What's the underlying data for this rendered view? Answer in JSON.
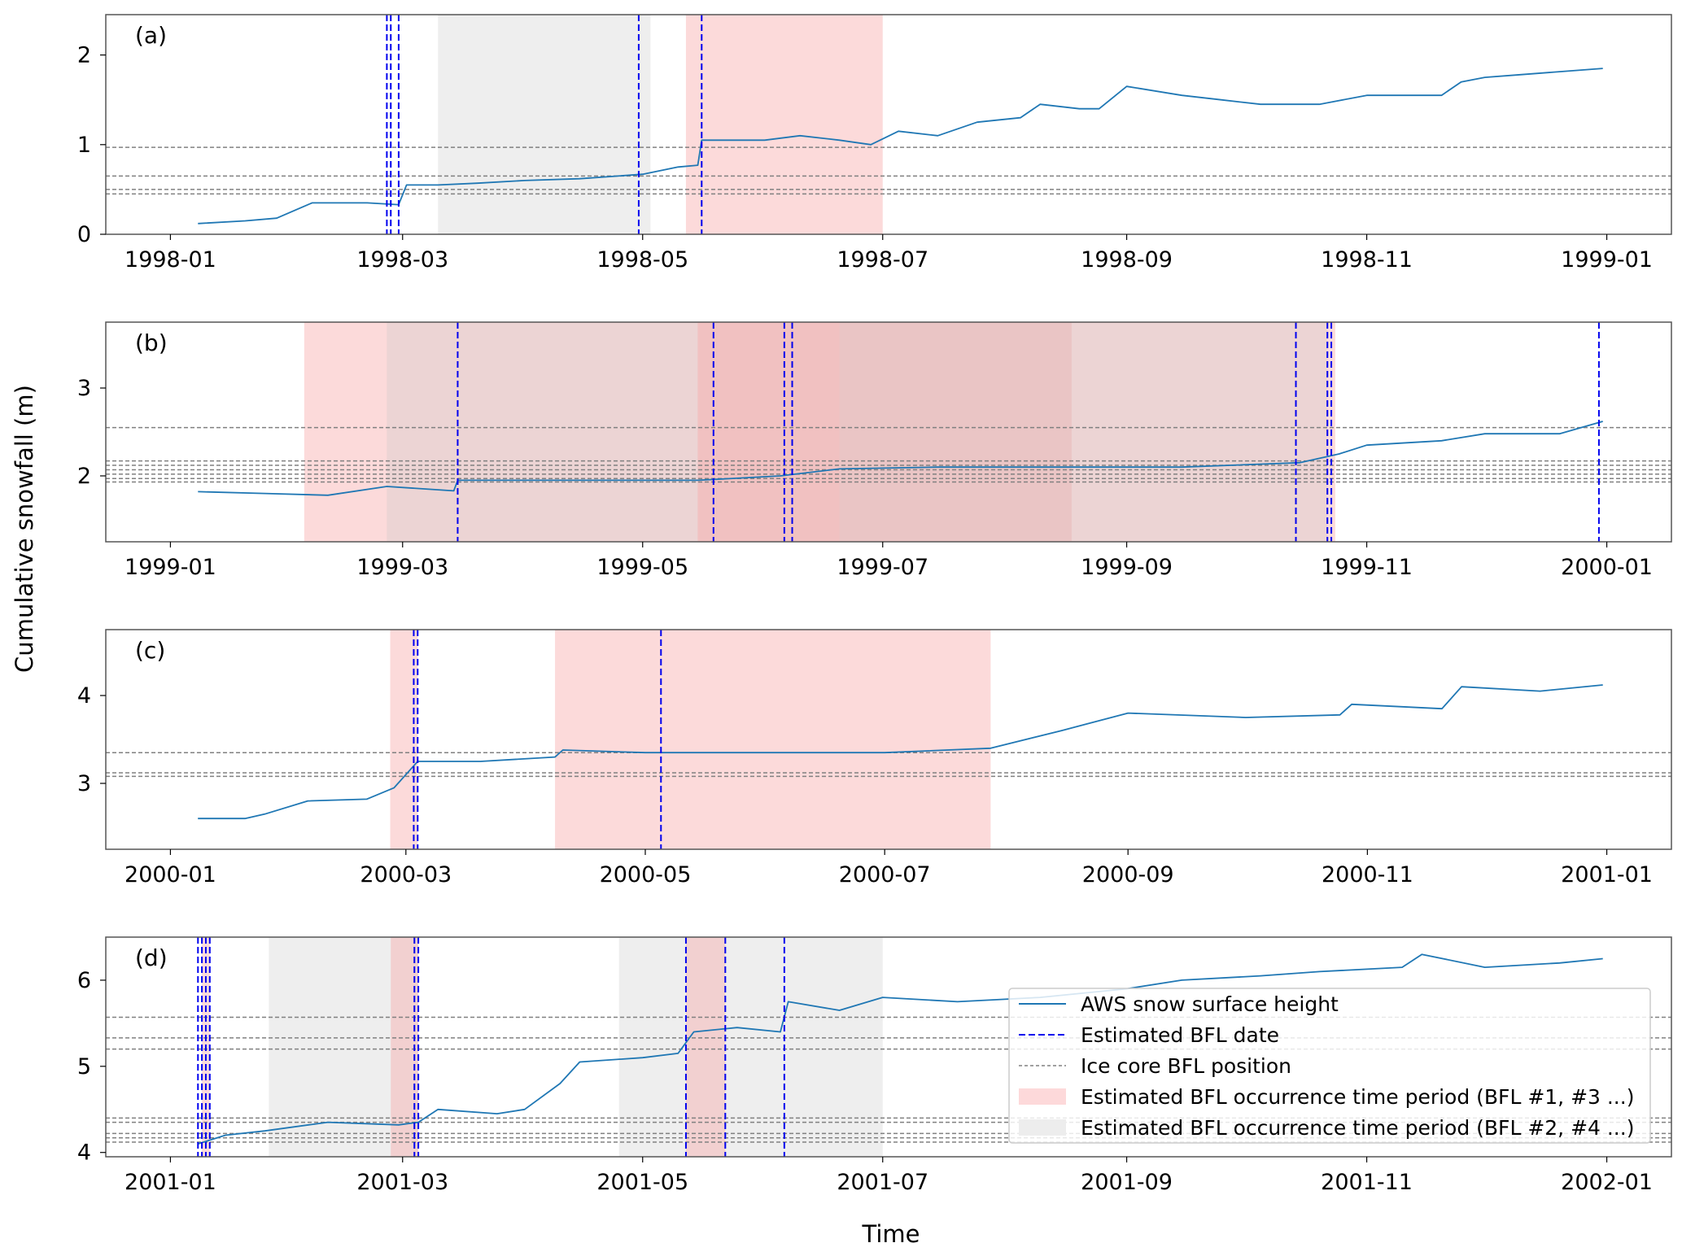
{
  "figure": {
    "ylabel": "Cumulative snowfall (m)",
    "xlabel": "Time"
  },
  "legend": {
    "placement": "lower-right of panel (d)",
    "entries": [
      {
        "label": "AWS snow surface height",
        "style": "line",
        "color": "#1f77b4"
      },
      {
        "label": "Estimated BFL date",
        "style": "dashed",
        "color": "#0000ee"
      },
      {
        "label": "Ice core BFL position",
        "style": "dotted",
        "color": "#808080"
      },
      {
        "label": "Estimated BFL occurrence time period (BFL #1, #3 ...)",
        "style": "patch",
        "color": "#fdd9da"
      },
      {
        "label": "Estimated BFL occurrence time period (BFL #2, #4 ...)",
        "style": "patch",
        "color": "#eeeeee"
      }
    ]
  },
  "colors": {
    "aws_line": "#1f77b4",
    "bfl_date": "#0000ee",
    "ice_core": "#808080",
    "period_odd": "#fdd9da",
    "period_even": "#ededed",
    "overlap": "#e8b0b0",
    "axes": "#000000"
  },
  "chart_data": [
    {
      "type": "line",
      "panel": "(a)",
      "xlim": [
        "1998-01-01",
        "1999-01-01"
      ],
      "ylim": [
        0,
        2.45
      ],
      "xticks": [
        "1998-01",
        "1998-03",
        "1998-05",
        "1998-07",
        "1998-09",
        "1998-11",
        "1999-01"
      ],
      "yticks": [
        "0",
        "1",
        "2"
      ],
      "series": [
        {
          "name": "AWS snow surface height",
          "points": [
            [
              "1998-01-08",
              0.12
            ],
            [
              "1998-01-20",
              0.15
            ],
            [
              "1998-01-28",
              0.18
            ],
            [
              "1998-02-06",
              0.35
            ],
            [
              "1998-02-20",
              0.35
            ],
            [
              "1998-02-28",
              0.33
            ],
            [
              "1998-03-02",
              0.55
            ],
            [
              "1998-03-10",
              0.55
            ],
            [
              "1998-03-20",
              0.57
            ],
            [
              "1998-04-01",
              0.6
            ],
            [
              "1998-04-15",
              0.62
            ],
            [
              "1998-05-01",
              0.67
            ],
            [
              "1998-05-10",
              0.75
            ],
            [
              "1998-05-15",
              0.77
            ],
            [
              "1998-05-16",
              1.05
            ],
            [
              "1998-06-01",
              1.05
            ],
            [
              "1998-06-10",
              1.1
            ],
            [
              "1998-06-20",
              1.05
            ],
            [
              "1998-06-28",
              1.0
            ],
            [
              "1998-07-05",
              1.15
            ],
            [
              "1998-07-15",
              1.1
            ],
            [
              "1998-07-25",
              1.25
            ],
            [
              "1998-08-05",
              1.3
            ],
            [
              "1998-08-10",
              1.45
            ],
            [
              "1998-08-20",
              1.4
            ],
            [
              "1998-08-25",
              1.4
            ],
            [
              "1998-09-01",
              1.65
            ],
            [
              "1998-09-15",
              1.55
            ],
            [
              "1998-09-25",
              1.5
            ],
            [
              "1998-10-05",
              1.45
            ],
            [
              "1998-10-20",
              1.45
            ],
            [
              "1998-11-01",
              1.55
            ],
            [
              "1998-11-20",
              1.55
            ],
            [
              "1998-11-25",
              1.7
            ],
            [
              "1998-12-01",
              1.75
            ],
            [
              "1998-12-10",
              1.78
            ],
            [
              "1998-12-31",
              1.85
            ]
          ]
        }
      ],
      "bfl_dates": [
        "1998-02-25",
        "1998-02-26",
        "1998-02-28",
        "1998-04-30",
        "1998-05-16"
      ],
      "ice_core_bfl_positions": [
        0.45,
        0.5,
        0.65,
        0.97
      ],
      "periods": [
        {
          "start": "1998-03-10",
          "end": "1998-05-03",
          "group": "even"
        },
        {
          "start": "1998-05-12",
          "end": "1998-07-01",
          "group": "odd"
        }
      ]
    },
    {
      "type": "line",
      "panel": "(b)",
      "xlim": [
        "1999-01-01",
        "2000-01-01"
      ],
      "ylim": [
        1.25,
        3.75
      ],
      "xticks": [
        "1999-01",
        "1999-03",
        "1999-05",
        "1999-07",
        "1999-09",
        "1999-11",
        "2000-01"
      ],
      "yticks": [
        "2",
        "3"
      ],
      "series": [
        {
          "name": "AWS snow surface height",
          "points": [
            [
              "1999-01-08",
              1.82
            ],
            [
              "1999-01-25",
              1.8
            ],
            [
              "1999-02-10",
              1.78
            ],
            [
              "1999-02-25",
              1.88
            ],
            [
              "1999-03-14",
              1.83
            ],
            [
              "1999-03-15",
              1.95
            ],
            [
              "1999-04-15",
              1.95
            ],
            [
              "1999-05-15",
              1.95
            ],
            [
              "1999-06-05",
              2.0
            ],
            [
              "1999-06-20",
              2.08
            ],
            [
              "1999-07-15",
              2.1
            ],
            [
              "1999-08-15",
              2.1
            ],
            [
              "1999-09-15",
              2.1
            ],
            [
              "1999-10-15",
              2.15
            ],
            [
              "1999-10-25",
              2.25
            ],
            [
              "1999-11-01",
              2.35
            ],
            [
              "1999-11-20",
              2.4
            ],
            [
              "1999-12-01",
              2.48
            ],
            [
              "1999-12-20",
              2.48
            ],
            [
              "1999-12-31",
              2.62
            ]
          ]
        }
      ],
      "bfl_dates": [
        "1999-03-15",
        "1999-05-19",
        "1999-06-06",
        "1999-06-08",
        "1999-10-14",
        "1999-10-22",
        "1999-10-23",
        "1999-12-30"
      ],
      "ice_core_bfl_positions": [
        1.93,
        1.97,
        2.02,
        2.07,
        2.12,
        2.17,
        2.55
      ],
      "periods": [
        {
          "start": "1999-02-04",
          "end": "1999-10-24",
          "group": "odd"
        },
        {
          "start": "1999-02-25",
          "end": "1999-06-20",
          "group": "even"
        },
        {
          "start": "1999-05-15",
          "end": "1999-08-18",
          "group": "odd"
        },
        {
          "start": "1999-06-20",
          "end": "1999-10-22",
          "group": "even"
        }
      ]
    },
    {
      "type": "line",
      "panel": "(c)",
      "xlim": [
        "2000-01-01",
        "2001-01-01"
      ],
      "ylim": [
        2.25,
        4.75
      ],
      "xticks": [
        "2000-01",
        "2000-03",
        "2000-05",
        "2000-07",
        "2000-09",
        "2000-11",
        "2001-01"
      ],
      "yticks": [
        "3",
        "4"
      ],
      "series": [
        {
          "name": "AWS snow surface height",
          "points": [
            [
              "2000-01-08",
              2.6
            ],
            [
              "2000-01-20",
              2.6
            ],
            [
              "2000-01-25",
              2.65
            ],
            [
              "2000-02-05",
              2.8
            ],
            [
              "2000-02-20",
              2.82
            ],
            [
              "2000-02-27",
              2.95
            ],
            [
              "2000-03-04",
              3.25
            ],
            [
              "2000-03-20",
              3.25
            ],
            [
              "2000-04-08",
              3.3
            ],
            [
              "2000-04-10",
              3.38
            ],
            [
              "2000-05-01",
              3.35
            ],
            [
              "2000-06-01",
              3.35
            ],
            [
              "2000-07-01",
              3.35
            ],
            [
              "2000-07-28",
              3.4
            ],
            [
              "2000-08-15",
              3.6
            ],
            [
              "2000-09-01",
              3.8
            ],
            [
              "2000-10-01",
              3.75
            ],
            [
              "2000-10-25",
              3.78
            ],
            [
              "2000-10-28",
              3.9
            ],
            [
              "2000-11-20",
              3.85
            ],
            [
              "2000-11-25",
              4.1
            ],
            [
              "2000-12-15",
              4.05
            ],
            [
              "2000-12-31",
              4.12
            ]
          ]
        }
      ],
      "bfl_dates": [
        "2000-03-03",
        "2000-03-04",
        "2000-05-05"
      ],
      "ice_core_bfl_positions": [
        3.08,
        3.12,
        3.35
      ],
      "periods": [
        {
          "start": "2000-02-26",
          "end": "2000-03-04",
          "group": "odd"
        },
        {
          "start": "2000-04-08",
          "end": "2000-07-28",
          "group": "odd"
        }
      ]
    },
    {
      "type": "line",
      "panel": "(d)",
      "xlim": [
        "2001-01-01",
        "2002-01-01"
      ],
      "ylim": [
        3.95,
        6.5
      ],
      "xticks": [
        "2001-01",
        "2001-03",
        "2001-05",
        "2001-07",
        "2001-09",
        "2001-11",
        "2002-01"
      ],
      "yticks": [
        "4",
        "5",
        "6"
      ],
      "series": [
        {
          "name": "AWS snow surface height",
          "points": [
            [
              "2001-01-08",
              4.1
            ],
            [
              "2001-01-15",
              4.2
            ],
            [
              "2001-01-25",
              4.25
            ],
            [
              "2001-02-10",
              4.35
            ],
            [
              "2001-02-28",
              4.32
            ],
            [
              "2001-03-05",
              4.35
            ],
            [
              "2001-03-10",
              4.5
            ],
            [
              "2001-03-25",
              4.45
            ],
            [
              "2001-04-01",
              4.5
            ],
            [
              "2001-04-10",
              4.8
            ],
            [
              "2001-04-15",
              5.05
            ],
            [
              "2001-05-01",
              5.1
            ],
            [
              "2001-05-10",
              5.15
            ],
            [
              "2001-05-14",
              5.4
            ],
            [
              "2001-05-25",
              5.45
            ],
            [
              "2001-06-05",
              5.4
            ],
            [
              "2001-06-07",
              5.75
            ],
            [
              "2001-06-20",
              5.65
            ],
            [
              "2001-07-01",
              5.8
            ],
            [
              "2001-07-20",
              5.75
            ],
            [
              "2001-08-10",
              5.8
            ],
            [
              "2001-09-01",
              5.9
            ],
            [
              "2001-09-15",
              6.0
            ],
            [
              "2001-10-05",
              6.05
            ],
            [
              "2001-10-20",
              6.1
            ],
            [
              "2001-11-10",
              6.15
            ],
            [
              "2001-11-15",
              6.3
            ],
            [
              "2001-12-01",
              6.15
            ],
            [
              "2001-12-20",
              6.2
            ],
            [
              "2001-12-31",
              6.25
            ]
          ]
        }
      ],
      "bfl_dates": [
        "2001-01-08",
        "2001-01-09",
        "2001-01-10",
        "2001-01-11",
        "2001-03-04",
        "2001-03-05",
        "2001-05-12",
        "2001-05-22",
        "2001-06-06"
      ],
      "ice_core_bfl_positions": [
        4.12,
        4.17,
        4.22,
        4.35,
        4.4,
        5.2,
        5.33,
        5.57
      ],
      "periods": [
        {
          "start": "2001-01-09",
          "end": "2001-01-11",
          "group": "odd"
        },
        {
          "start": "2001-01-26",
          "end": "2001-03-05",
          "group": "even"
        },
        {
          "start": "2001-02-26",
          "end": "2001-03-05",
          "group": "odd"
        },
        {
          "start": "2001-04-25",
          "end": "2001-07-01",
          "group": "even"
        },
        {
          "start": "2001-05-12",
          "end": "2001-05-22",
          "group": "odd"
        }
      ]
    }
  ]
}
